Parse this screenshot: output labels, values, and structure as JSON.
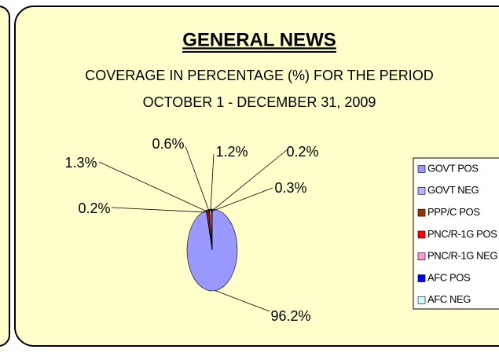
{
  "chart_data": {
    "type": "pie",
    "title": "GENERAL NEWS",
    "subtitle": [
      "COVERAGE IN PERCENTAGE (%) FOR THE PERIOD",
      "OCTOBER 1 - DECEMBER 31, 2009"
    ],
    "categories": [
      "GOVT POS",
      "GOVT NEG",
      "PPP/C POS",
      "PNC/R-1G POS",
      "PNC/R-1G NEG",
      "AFC POS",
      "AFC NEG"
    ],
    "values": [
      96.2,
      0.2,
      1.3,
      0.6,
      1.2,
      0.2,
      0.3
    ],
    "value_labels": [
      "96.2%",
      "0.2%",
      "1.3%",
      "0.6%",
      "1.2%",
      "0.2%",
      "0.3%"
    ],
    "colors": [
      "#9999ff",
      "#b3b3ff",
      "#993300",
      "#ff0000",
      "#ff99cc",
      "#0000ff",
      "#ccffff"
    ],
    "legend": "right"
  }
}
